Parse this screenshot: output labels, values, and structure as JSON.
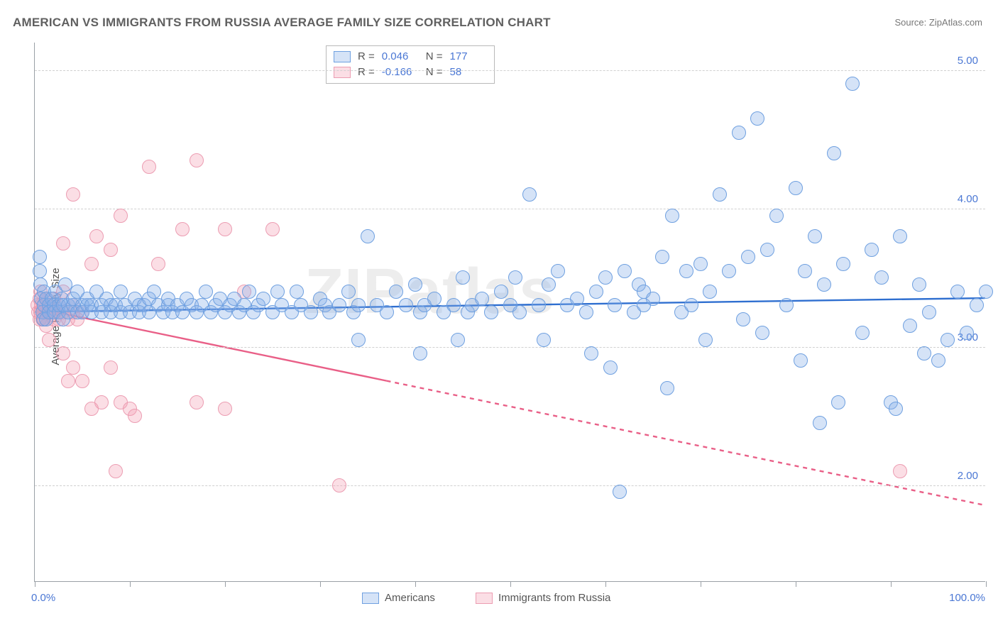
{
  "title": "AMERICAN VS IMMIGRANTS FROM RUSSIA AVERAGE FAMILY SIZE CORRELATION CHART",
  "source_label": "Source: ZipAtlas.com",
  "watermark": "ZIPatlas",
  "yaxis_title": "Average Family Size",
  "chart": {
    "type": "scatter",
    "background_color": "#ffffff",
    "grid_color": "#d0d0d0",
    "axis_color": "#9aa0a6",
    "text_color": "#606060",
    "value_color": "#4a77d4",
    "xlim": [
      0,
      100
    ],
    "ylim": [
      1.3,
      5.2
    ],
    "x_ticks": [
      0,
      10,
      20,
      30,
      40,
      50,
      60,
      70,
      80,
      90,
      100
    ],
    "x_tick_labels_visible": {
      "0": "0.0%",
      "100": "100.0%"
    },
    "y_ticks": [
      2.0,
      3.0,
      4.0,
      5.0
    ],
    "y_tick_labels": [
      "2.00",
      "3.00",
      "4.00",
      "5.00"
    ],
    "marker_radius": 10,
    "marker_stroke_width": 1.2,
    "trend_line_width": 2.4,
    "series": {
      "americans": {
        "label": "Americans",
        "fill": "rgba(135,176,232,0.35)",
        "stroke": "#6fa0e0",
        "trend_color": "#2f6fd0",
        "R": "0.046",
        "N": "177",
        "trend": {
          "x1": 0,
          "y1": 3.25,
          "x2": 100,
          "y2": 3.35
        },
        "trend_dash_from_x": null,
        "points": [
          [
            0.5,
            3.65
          ],
          [
            0.5,
            3.55
          ],
          [
            0.6,
            3.45
          ],
          [
            0.7,
            3.35
          ],
          [
            0.8,
            3.25
          ],
          [
            0.9,
            3.2
          ],
          [
            1.0,
            3.4
          ],
          [
            1.0,
            3.3
          ],
          [
            1.2,
            3.2
          ],
          [
            1.2,
            3.35
          ],
          [
            1.5,
            3.3
          ],
          [
            1.5,
            3.25
          ],
          [
            1.8,
            3.35
          ],
          [
            2.0,
            3.3
          ],
          [
            2.0,
            3.25
          ],
          [
            2.2,
            3.4
          ],
          [
            2.5,
            3.25
          ],
          [
            2.5,
            3.3
          ],
          [
            2.8,
            3.35
          ],
          [
            3.0,
            3.3
          ],
          [
            3.0,
            3.2
          ],
          [
            3.2,
            3.45
          ],
          [
            3.5,
            3.3
          ],
          [
            3.5,
            3.25
          ],
          [
            4.0,
            3.3
          ],
          [
            4.0,
            3.35
          ],
          [
            4.5,
            3.25
          ],
          [
            4.5,
            3.4
          ],
          [
            5.0,
            3.3
          ],
          [
            5.0,
            3.25
          ],
          [
            5.5,
            3.3
          ],
          [
            5.5,
            3.35
          ],
          [
            6.0,
            3.25
          ],
          [
            6.0,
            3.3
          ],
          [
            6.5,
            3.4
          ],
          [
            7.0,
            3.3
          ],
          [
            7.0,
            3.25
          ],
          [
            7.5,
            3.35
          ],
          [
            8.0,
            3.3
          ],
          [
            8.0,
            3.25
          ],
          [
            8.5,
            3.3
          ],
          [
            9.0,
            3.4
          ],
          [
            9.0,
            3.25
          ],
          [
            9.5,
            3.3
          ],
          [
            10.0,
            3.25
          ],
          [
            10.5,
            3.35
          ],
          [
            11.0,
            3.3
          ],
          [
            11.0,
            3.25
          ],
          [
            11.5,
            3.3
          ],
          [
            12.0,
            3.35
          ],
          [
            12.0,
            3.25
          ],
          [
            12.5,
            3.4
          ],
          [
            13.0,
            3.3
          ],
          [
            13.5,
            3.25
          ],
          [
            14.0,
            3.3
          ],
          [
            14.0,
            3.35
          ],
          [
            14.5,
            3.25
          ],
          [
            15.0,
            3.3
          ],
          [
            15.5,
            3.25
          ],
          [
            16.0,
            3.35
          ],
          [
            16.5,
            3.3
          ],
          [
            17.0,
            3.25
          ],
          [
            17.5,
            3.3
          ],
          [
            18.0,
            3.4
          ],
          [
            18.5,
            3.25
          ],
          [
            19.0,
            3.3
          ],
          [
            19.5,
            3.35
          ],
          [
            20.0,
            3.25
          ],
          [
            20.5,
            3.3
          ],
          [
            21.0,
            3.35
          ],
          [
            21.5,
            3.25
          ],
          [
            22.0,
            3.3
          ],
          [
            22.5,
            3.4
          ],
          [
            23.0,
            3.25
          ],
          [
            23.5,
            3.3
          ],
          [
            24.0,
            3.35
          ],
          [
            25.0,
            3.25
          ],
          [
            25.5,
            3.4
          ],
          [
            26.0,
            3.3
          ],
          [
            27.0,
            3.25
          ],
          [
            27.5,
            3.4
          ],
          [
            28.0,
            3.3
          ],
          [
            29.0,
            3.25
          ],
          [
            30.0,
            3.35
          ],
          [
            30.5,
            3.3
          ],
          [
            31.0,
            3.25
          ],
          [
            32.0,
            3.3
          ],
          [
            33.0,
            3.4
          ],
          [
            33.5,
            3.25
          ],
          [
            34.0,
            3.3
          ],
          [
            34.0,
            3.05
          ],
          [
            35.0,
            3.8
          ],
          [
            36.0,
            3.3
          ],
          [
            37.0,
            3.25
          ],
          [
            38.0,
            3.4
          ],
          [
            39.0,
            3.3
          ],
          [
            40.0,
            3.45
          ],
          [
            40.5,
            3.25
          ],
          [
            40.5,
            2.95
          ],
          [
            41.0,
            3.3
          ],
          [
            42.0,
            3.35
          ],
          [
            43.0,
            3.25
          ],
          [
            44.0,
            3.3
          ],
          [
            44.5,
            3.05
          ],
          [
            45.0,
            3.5
          ],
          [
            45.5,
            3.25
          ],
          [
            46.0,
            3.3
          ],
          [
            47.0,
            3.35
          ],
          [
            48.0,
            3.25
          ],
          [
            49.0,
            3.4
          ],
          [
            50.0,
            3.3
          ],
          [
            50.5,
            3.5
          ],
          [
            51.0,
            3.25
          ],
          [
            52.0,
            4.1
          ],
          [
            53.0,
            3.3
          ],
          [
            53.5,
            3.05
          ],
          [
            54.0,
            3.45
          ],
          [
            55.0,
            3.55
          ],
          [
            56.0,
            3.3
          ],
          [
            57.0,
            3.35
          ],
          [
            58.0,
            3.25
          ],
          [
            58.5,
            2.95
          ],
          [
            59.0,
            3.4
          ],
          [
            60.0,
            3.5
          ],
          [
            60.5,
            2.85
          ],
          [
            61.0,
            3.3
          ],
          [
            61.5,
            1.95
          ],
          [
            62.0,
            3.55
          ],
          [
            63.0,
            3.25
          ],
          [
            63.5,
            3.45
          ],
          [
            64.0,
            3.3
          ],
          [
            64.0,
            3.4
          ],
          [
            65.0,
            3.35
          ],
          [
            66.0,
            3.65
          ],
          [
            66.5,
            2.7
          ],
          [
            67.0,
            3.95
          ],
          [
            68.0,
            3.25
          ],
          [
            68.5,
            3.55
          ],
          [
            69.0,
            3.3
          ],
          [
            70.0,
            3.6
          ],
          [
            70.5,
            3.05
          ],
          [
            71.0,
            3.4
          ],
          [
            72.0,
            4.1
          ],
          [
            73.0,
            3.55
          ],
          [
            74.0,
            4.55
          ],
          [
            74.5,
            3.2
          ],
          [
            75.0,
            3.65
          ],
          [
            76.0,
            4.65
          ],
          [
            76.5,
            3.1
          ],
          [
            77.0,
            3.7
          ],
          [
            78.0,
            3.95
          ],
          [
            79.0,
            3.3
          ],
          [
            80.0,
            4.15
          ],
          [
            80.5,
            2.9
          ],
          [
            81.0,
            3.55
          ],
          [
            82.0,
            3.8
          ],
          [
            82.5,
            2.45
          ],
          [
            83.0,
            3.45
          ],
          [
            84.0,
            4.4
          ],
          [
            84.5,
            2.6
          ],
          [
            85.0,
            3.6
          ],
          [
            86.0,
            4.9
          ],
          [
            87.0,
            3.1
          ],
          [
            88.0,
            3.7
          ],
          [
            89.0,
            3.5
          ],
          [
            90.0,
            2.6
          ],
          [
            90.5,
            2.55
          ],
          [
            91.0,
            3.8
          ],
          [
            92.0,
            3.15
          ],
          [
            93.0,
            3.45
          ],
          [
            93.5,
            2.95
          ],
          [
            94.0,
            3.25
          ],
          [
            95.0,
            2.9
          ],
          [
            96.0,
            3.05
          ],
          [
            97.0,
            3.4
          ],
          [
            98.0,
            3.1
          ],
          [
            99.0,
            3.3
          ],
          [
            100.0,
            3.4
          ]
        ]
      },
      "russia": {
        "label": "Immigrants from Russia",
        "fill": "rgba(244,160,180,0.35)",
        "stroke": "#ec9db2",
        "trend_color": "#e95f87",
        "R": "-0.166",
        "N": "58",
        "trend": {
          "x1": 0,
          "y1": 3.28,
          "x2": 100,
          "y2": 1.85
        },
        "trend_dash_from_x": 37,
        "points": [
          [
            0.3,
            3.3
          ],
          [
            0.4,
            3.25
          ],
          [
            0.5,
            3.2
          ],
          [
            0.5,
            3.35
          ],
          [
            0.6,
            3.25
          ],
          [
            0.6,
            3.4
          ],
          [
            0.7,
            3.3
          ],
          [
            0.8,
            3.2
          ],
          [
            0.8,
            3.25
          ],
          [
            0.9,
            3.3
          ],
          [
            1.0,
            3.25
          ],
          [
            1.0,
            3.2
          ],
          [
            1.2,
            3.35
          ],
          [
            1.2,
            3.15
          ],
          [
            1.4,
            3.25
          ],
          [
            1.5,
            3.3
          ],
          [
            1.5,
            3.05
          ],
          [
            1.8,
            3.25
          ],
          [
            2.0,
            3.2
          ],
          [
            2.0,
            3.35
          ],
          [
            2.2,
            3.25
          ],
          [
            2.5,
            3.3
          ],
          [
            2.5,
            3.2
          ],
          [
            3.0,
            3.25
          ],
          [
            3.0,
            3.4
          ],
          [
            3.5,
            3.2
          ],
          [
            4.0,
            3.25
          ],
          [
            4.0,
            3.3
          ],
          [
            4.5,
            3.2
          ],
          [
            5.0,
            3.25
          ],
          [
            3.0,
            2.95
          ],
          [
            3.5,
            2.75
          ],
          [
            4.0,
            2.85
          ],
          [
            5.0,
            2.75
          ],
          [
            6.0,
            2.55
          ],
          [
            7.0,
            2.6
          ],
          [
            8.0,
            2.85
          ],
          [
            9.0,
            2.6
          ],
          [
            10.0,
            2.55
          ],
          [
            10.5,
            2.5
          ],
          [
            3.0,
            3.75
          ],
          [
            4.0,
            4.1
          ],
          [
            6.0,
            3.6
          ],
          [
            6.5,
            3.8
          ],
          [
            8.0,
            3.7
          ],
          [
            9.0,
            3.95
          ],
          [
            12.0,
            4.3
          ],
          [
            13.0,
            3.6
          ],
          [
            15.5,
            3.85
          ],
          [
            17.0,
            4.35
          ],
          [
            17.0,
            2.6
          ],
          [
            20.0,
            3.85
          ],
          [
            20.0,
            2.55
          ],
          [
            22.0,
            3.4
          ],
          [
            25.0,
            3.85
          ],
          [
            8.5,
            2.1
          ],
          [
            32.0,
            2.0
          ],
          [
            91.0,
            2.1
          ]
        ]
      }
    },
    "stats_legend": {
      "r_label": "R =",
      "n_label": "N ="
    }
  }
}
